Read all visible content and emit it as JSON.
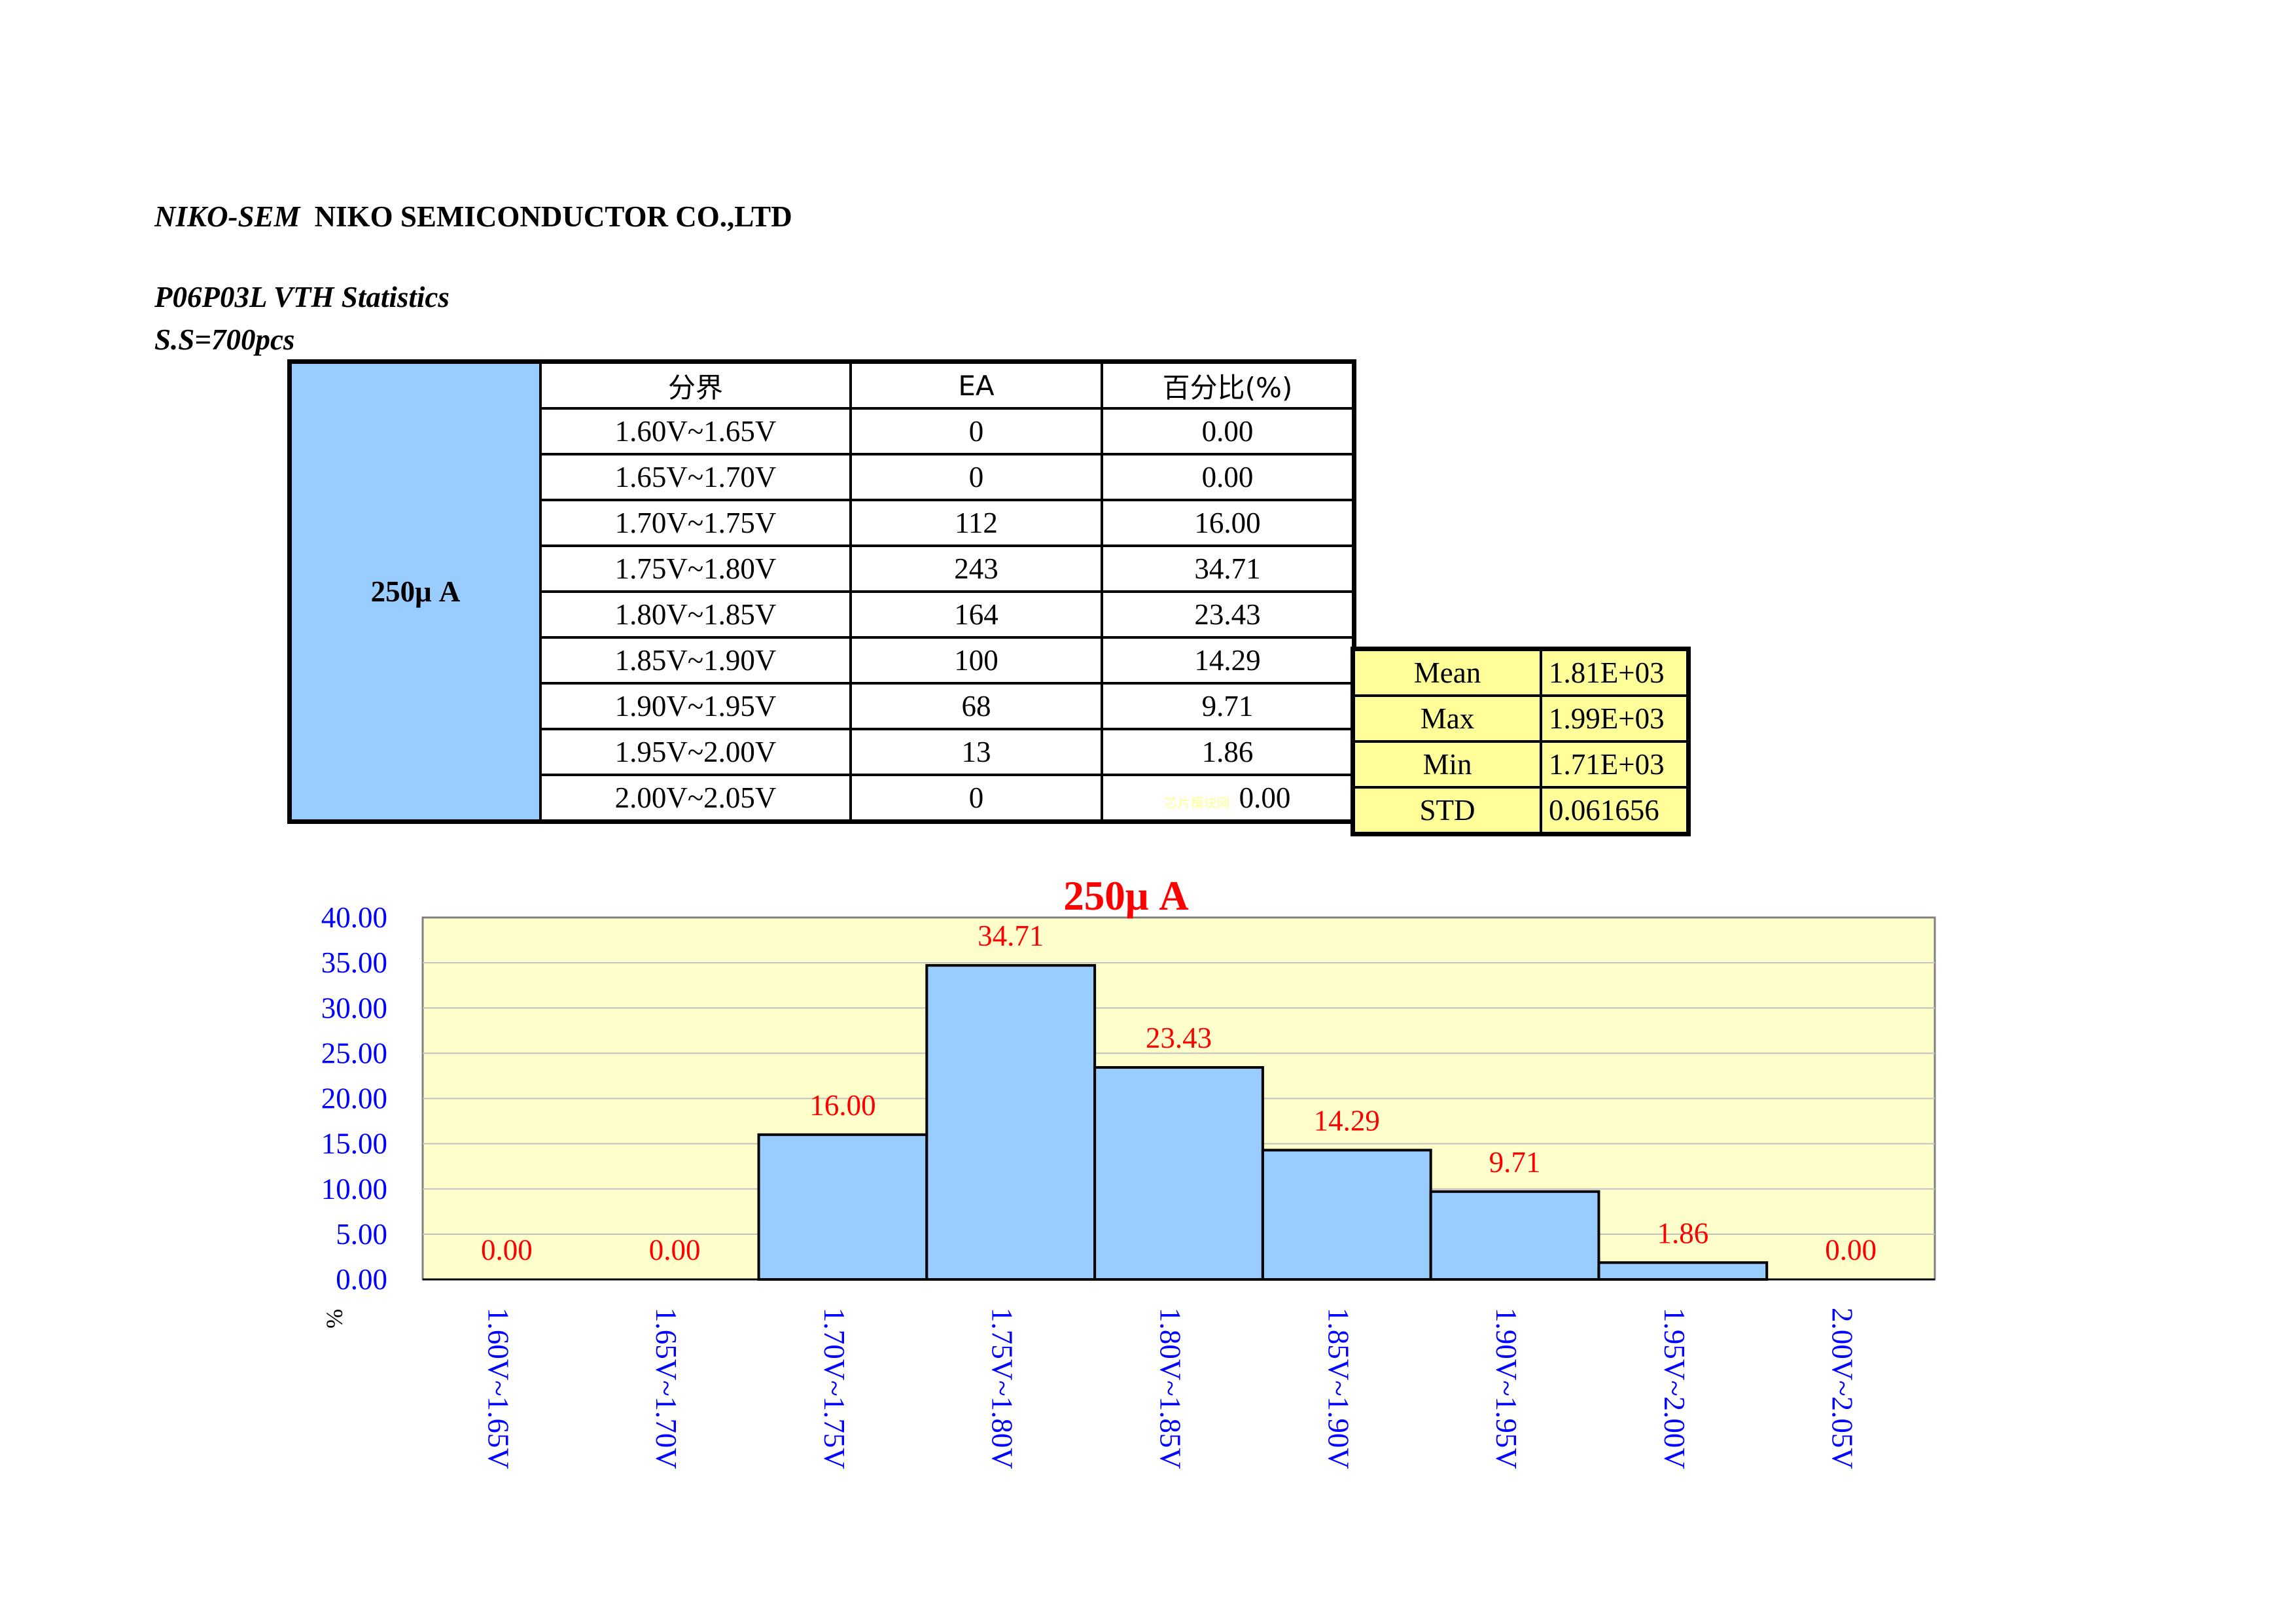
{
  "header": {
    "brand": "NIKO-SEM",
    "company": "NIKO SEMICONDUCTOR CO.,LTD",
    "title": "P06P03L VTH Statistics",
    "sample_size": "S.S=700pcs"
  },
  "table": {
    "group_label": "250μ A",
    "columns": [
      "分界",
      "EA",
      "百分比(%)"
    ],
    "rows": [
      [
        "1.60V~1.65V",
        "0",
        "0.00"
      ],
      [
        "1.65V~1.70V",
        "0",
        "0.00"
      ],
      [
        "1.70V~1.75V",
        "112",
        "16.00"
      ],
      [
        "1.75V~1.80V",
        "243",
        "34.71"
      ],
      [
        "1.80V~1.85V",
        "164",
        "23.43"
      ],
      [
        "1.85V~1.90V",
        "100",
        "14.29"
      ],
      [
        "1.90V~1.95V",
        "68",
        "9.71"
      ],
      [
        "1.95V~2.00V",
        "13",
        "1.86"
      ],
      [
        "2.00V~2.05V",
        "0",
        "0.00"
      ]
    ],
    "watermark": "芯片模块网"
  },
  "stats": [
    [
      "Mean",
      "1.81E+03"
    ],
    [
      "Max",
      "1.99E+03"
    ],
    [
      "Min",
      "1.71E+03"
    ],
    [
      "STD",
      "0.061656"
    ]
  ],
  "chart_data": {
    "type": "bar",
    "title": "250μ A",
    "ylabel": "%",
    "xlabel": "",
    "ylim": [
      0,
      40
    ],
    "yticks": [
      "0.00",
      "5.00",
      "10.00",
      "15.00",
      "20.00",
      "25.00",
      "30.00",
      "35.00",
      "40.00"
    ],
    "categories": [
      "1.60V~1.65V",
      "1.65V~1.70V",
      "1.70V~1.75V",
      "1.75V~1.80V",
      "1.80V~1.85V",
      "1.85V~1.90V",
      "1.90V~1.95V",
      "1.95V~2.00V",
      "2.00V~2.05V"
    ],
    "values": [
      0,
      0,
      16.0,
      34.71,
      23.43,
      14.29,
      9.71,
      1.86,
      0
    ],
    "labels": [
      "0.00",
      "0.00",
      "16.00",
      "34.71",
      "23.43",
      "14.29",
      "9.71",
      "1.86",
      "0.00"
    ],
    "grid": true,
    "colors": {
      "bar": "#99ccff",
      "plot_bg": "#ffffcc",
      "title": "#ff0000",
      "data_label": "#ff0000",
      "axis_text": "#0000ff"
    }
  }
}
